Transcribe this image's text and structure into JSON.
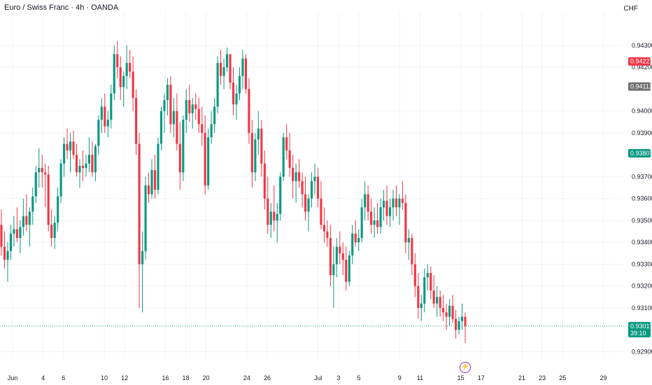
{
  "header": {
    "title": "Euro / Swiss Franc · 4h · OANDA",
    "currency": "CHF"
  },
  "colors": {
    "up": "#089981",
    "down": "#f23645",
    "grid": "#f0f3fa",
    "current_tag": "#089981",
    "prev_tag": "#707070",
    "high_tag": "#f23645",
    "green_tag": "#089981",
    "event": "#9c27b0"
  },
  "y_ticks": [
    "0.94300",
    "0.94200",
    "0.94000",
    "0.93900",
    "0.93700",
    "0.93600",
    "0.93500",
    "0.93400",
    "0.93300",
    "0.93200",
    "0.93100",
    "0.92900"
  ],
  "y_tick_values": [
    0.943,
    0.942,
    0.94,
    0.939,
    0.937,
    0.936,
    0.935,
    0.934,
    0.933,
    0.932,
    0.931,
    0.929
  ],
  "x_ticks": [
    {
      "label": "Jun",
      "day": 0
    },
    {
      "label": "4",
      "day": 3
    },
    {
      "label": "6",
      "day": 5
    },
    {
      "label": "10",
      "day": 9
    },
    {
      "label": "12",
      "day": 11
    },
    {
      "label": "16",
      "day": 15
    },
    {
      "label": "18",
      "day": 17
    },
    {
      "label": "20",
      "day": 19
    },
    {
      "label": "24",
      "day": 23
    },
    {
      "label": "26",
      "day": 25
    },
    {
      "label": "Jul",
      "day": 30
    },
    {
      "label": "3",
      "day": 32
    },
    {
      "label": "5",
      "day": 34
    },
    {
      "label": "9",
      "day": 38
    },
    {
      "label": "11",
      "day": 40
    },
    {
      "label": "15",
      "day": 44
    },
    {
      "label": "17",
      "day": 46
    },
    {
      "label": "21",
      "day": 50
    },
    {
      "label": "23",
      "day": 52
    },
    {
      "label": "25",
      "day": 54
    },
    {
      "label": "29",
      "day": 58
    }
  ],
  "price_tags": [
    {
      "label": "0.94227",
      "value": 0.94227,
      "color": "high_tag"
    },
    {
      "label": "0.94112",
      "value": 0.94112,
      "color": "prev_tag"
    },
    {
      "label": "0.93807",
      "value": 0.93807,
      "color": "green_tag"
    },
    {
      "label": "0.93017",
      "value": 0.93017,
      "color": "current_tag",
      "countdown": "39:10"
    }
  ],
  "current_price": 0.93017,
  "event_marker": "⚡",
  "chart_data": {
    "type": "candlestick",
    "title": "Euro / Swiss Franc · 4h · OANDA",
    "xlabel": "",
    "ylabel": "",
    "ylim": [
      0.9286,
      0.9445
    ],
    "xlim_days": [
      0,
      58
    ],
    "grid": true,
    "candles": [
      [
        0.9348,
        0.9355,
        0.9334,
        0.9338
      ],
      [
        0.9338,
        0.9345,
        0.9328,
        0.9332
      ],
      [
        0.9332,
        0.934,
        0.9322,
        0.9336
      ],
      [
        0.9336,
        0.9348,
        0.9332,
        0.9344
      ],
      [
        0.9344,
        0.9352,
        0.9338,
        0.9346
      ],
      [
        0.9346,
        0.9356,
        0.934,
        0.9342
      ],
      [
        0.9342,
        0.935,
        0.9335,
        0.9347
      ],
      [
        0.9347,
        0.936,
        0.9343,
        0.9352
      ],
      [
        0.9352,
        0.9362,
        0.9345,
        0.9348
      ],
      [
        0.9348,
        0.9356,
        0.9338,
        0.9354
      ],
      [
        0.9354,
        0.9365,
        0.9348,
        0.9361
      ],
      [
        0.9361,
        0.9375,
        0.9358,
        0.9372
      ],
      [
        0.9372,
        0.9383,
        0.9365,
        0.9374
      ],
      [
        0.9374,
        0.938,
        0.9365,
        0.9372
      ],
      [
        0.9372,
        0.9376,
        0.9356,
        0.9371
      ],
      [
        0.9371,
        0.9375,
        0.9345,
        0.9348
      ],
      [
        0.9348,
        0.9355,
        0.9338,
        0.9342
      ],
      [
        0.9342,
        0.9352,
        0.9337,
        0.9349
      ],
      [
        0.9349,
        0.9365,
        0.9345,
        0.9361
      ],
      [
        0.9361,
        0.9378,
        0.9358,
        0.9376
      ],
      [
        0.9376,
        0.9388,
        0.937,
        0.9385
      ],
      [
        0.9385,
        0.9392,
        0.9378,
        0.9382
      ],
      [
        0.9382,
        0.939,
        0.9372,
        0.9386
      ],
      [
        0.9386,
        0.9391,
        0.9378,
        0.938
      ],
      [
        0.938,
        0.9385,
        0.937,
        0.9372
      ],
      [
        0.9372,
        0.9378,
        0.9365,
        0.9375
      ],
      [
        0.9375,
        0.9382,
        0.9368,
        0.9374
      ],
      [
        0.9374,
        0.938,
        0.937,
        0.9376
      ],
      [
        0.9376,
        0.9388,
        0.9372,
        0.938
      ],
      [
        0.938,
        0.9386,
        0.937,
        0.9372
      ],
      [
        0.9372,
        0.9385,
        0.9368,
        0.9384
      ],
      [
        0.9384,
        0.9398,
        0.938,
        0.9396
      ],
      [
        0.9396,
        0.9406,
        0.939,
        0.9402
      ],
      [
        0.9402,
        0.9408,
        0.939,
        0.9393
      ],
      [
        0.9393,
        0.94,
        0.9388,
        0.9396
      ],
      [
        0.9396,
        0.9412,
        0.9392,
        0.9408
      ],
      [
        0.9408,
        0.943,
        0.9405,
        0.9426
      ],
      [
        0.9426,
        0.9432,
        0.9415,
        0.942
      ],
      [
        0.942,
        0.9425,
        0.9405,
        0.9411
      ],
      [
        0.9411,
        0.9418,
        0.9402,
        0.9416
      ],
      [
        0.9416,
        0.943,
        0.941,
        0.9422
      ],
      [
        0.9422,
        0.9428,
        0.9415,
        0.9418
      ],
      [
        0.9418,
        0.9425,
        0.94,
        0.9406
      ],
      [
        0.9406,
        0.941,
        0.938,
        0.9385
      ],
      [
        0.9385,
        0.939,
        0.931,
        0.933
      ],
      [
        0.933,
        0.9345,
        0.9308,
        0.9336
      ],
      [
        0.9336,
        0.937,
        0.9332,
        0.9366
      ],
      [
        0.9366,
        0.9372,
        0.9358,
        0.9362
      ],
      [
        0.9362,
        0.9378,
        0.936,
        0.9373
      ],
      [
        0.9373,
        0.938,
        0.936,
        0.9364
      ],
      [
        0.9364,
        0.9388,
        0.9362,
        0.9385
      ],
      [
        0.9385,
        0.9402,
        0.9382,
        0.94
      ],
      [
        0.94,
        0.9408,
        0.939,
        0.9405
      ],
      [
        0.9405,
        0.9415,
        0.9398,
        0.9412
      ],
      [
        0.9412,
        0.9416,
        0.939,
        0.9394
      ],
      [
        0.9394,
        0.9406,
        0.9388,
        0.94
      ],
      [
        0.94,
        0.9408,
        0.9382,
        0.9385
      ],
      [
        0.9385,
        0.9395,
        0.9364,
        0.9372
      ],
      [
        0.9372,
        0.9398,
        0.9368,
        0.9396
      ],
      [
        0.9396,
        0.941,
        0.939,
        0.9405
      ],
      [
        0.9405,
        0.9412,
        0.9395,
        0.9399
      ],
      [
        0.9399,
        0.9406,
        0.9392,
        0.9403
      ],
      [
        0.9403,
        0.9408,
        0.9396,
        0.9401
      ],
      [
        0.9401,
        0.9406,
        0.939,
        0.9394
      ],
      [
        0.9394,
        0.9402,
        0.9384,
        0.939
      ],
      [
        0.939,
        0.9398,
        0.9362,
        0.9366
      ],
      [
        0.9366,
        0.9392,
        0.9364,
        0.9388
      ],
      [
        0.9388,
        0.94,
        0.9385,
        0.9394
      ],
      [
        0.9394,
        0.9406,
        0.939,
        0.9402
      ],
      [
        0.9402,
        0.9425,
        0.9399,
        0.9422
      ],
      [
        0.9422,
        0.9428,
        0.9412,
        0.9416
      ],
      [
        0.9416,
        0.9424,
        0.941,
        0.942
      ],
      [
        0.942,
        0.9429,
        0.9418,
        0.9426
      ],
      [
        0.9426,
        0.9425,
        0.941,
        0.9413
      ],
      [
        0.9413,
        0.942,
        0.9398,
        0.9403
      ],
      [
        0.9403,
        0.9412,
        0.9396,
        0.9408
      ],
      [
        0.9408,
        0.942,
        0.9405,
        0.9416
      ],
      [
        0.9416,
        0.9428,
        0.941,
        0.9424
      ],
      [
        0.9424,
        0.9426,
        0.9408,
        0.941
      ],
      [
        0.941,
        0.9415,
        0.9385,
        0.939
      ],
      [
        0.939,
        0.9396,
        0.9365,
        0.9372
      ],
      [
        0.9372,
        0.939,
        0.9368,
        0.9387
      ],
      [
        0.9387,
        0.94,
        0.938,
        0.9392
      ],
      [
        0.9392,
        0.9396,
        0.937,
        0.9376
      ],
      [
        0.9376,
        0.9382,
        0.9355,
        0.936
      ],
      [
        0.936,
        0.937,
        0.9344,
        0.9348
      ],
      [
        0.9348,
        0.9358,
        0.9342,
        0.9354
      ],
      [
        0.9354,
        0.9366,
        0.9345,
        0.935
      ],
      [
        0.935,
        0.9358,
        0.934,
        0.9353
      ],
      [
        0.9353,
        0.9372,
        0.935,
        0.937
      ],
      [
        0.937,
        0.939,
        0.9368,
        0.9388
      ],
      [
        0.9388,
        0.9394,
        0.9378,
        0.9382
      ],
      [
        0.9382,
        0.939,
        0.937,
        0.9374
      ],
      [
        0.9374,
        0.938,
        0.936,
        0.9368
      ],
      [
        0.9368,
        0.9376,
        0.9358,
        0.9372
      ],
      [
        0.9372,
        0.9378,
        0.9365,
        0.9368
      ],
      [
        0.9368,
        0.9372,
        0.9356,
        0.9362
      ],
      [
        0.9362,
        0.937,
        0.935,
        0.9354
      ],
      [
        0.9354,
        0.9362,
        0.9345,
        0.936
      ],
      [
        0.936,
        0.9372,
        0.9356,
        0.9368
      ],
      [
        0.9368,
        0.9376,
        0.9362,
        0.937
      ],
      [
        0.937,
        0.9374,
        0.9356,
        0.936
      ],
      [
        0.936,
        0.9368,
        0.9346,
        0.9348
      ],
      [
        0.9348,
        0.9356,
        0.934,
        0.9345
      ],
      [
        0.9345,
        0.935,
        0.9338,
        0.9342
      ],
      [
        0.9342,
        0.9348,
        0.932,
        0.9325
      ],
      [
        0.9325,
        0.9338,
        0.931,
        0.933
      ],
      [
        0.933,
        0.9342,
        0.9324,
        0.9338
      ],
      [
        0.9338,
        0.9345,
        0.933,
        0.9335
      ],
      [
        0.9335,
        0.934,
        0.9325,
        0.9332
      ],
      [
        0.9332,
        0.9338,
        0.9318,
        0.9322
      ],
      [
        0.9322,
        0.9336,
        0.932,
        0.9334
      ],
      [
        0.9334,
        0.9348,
        0.933,
        0.9344
      ],
      [
        0.9344,
        0.935,
        0.9338,
        0.934
      ],
      [
        0.934,
        0.9346,
        0.9336,
        0.9342
      ],
      [
        0.9342,
        0.936,
        0.934,
        0.9356
      ],
      [
        0.9356,
        0.9368,
        0.935,
        0.9362
      ],
      [
        0.9362,
        0.9366,
        0.935,
        0.9354
      ],
      [
        0.9354,
        0.936,
        0.9344,
        0.9348
      ],
      [
        0.9348,
        0.9356,
        0.9342,
        0.935
      ],
      [
        0.935,
        0.9358,
        0.9344,
        0.9347
      ],
      [
        0.9347,
        0.936,
        0.9344,
        0.9356
      ],
      [
        0.9356,
        0.9364,
        0.935,
        0.9359
      ],
      [
        0.9359,
        0.9366,
        0.9348,
        0.9352
      ],
      [
        0.9352,
        0.936,
        0.9347,
        0.9356
      ],
      [
        0.9356,
        0.9364,
        0.935,
        0.936
      ],
      [
        0.936,
        0.9366,
        0.9352,
        0.9356
      ],
      [
        0.9356,
        0.9362,
        0.9348,
        0.936
      ],
      [
        0.936,
        0.9368,
        0.9355,
        0.9358
      ],
      [
        0.9358,
        0.9362,
        0.9335,
        0.934
      ],
      [
        0.934,
        0.9346,
        0.9332,
        0.9342
      ],
      [
        0.9342,
        0.9344,
        0.9325,
        0.933
      ],
      [
        0.933,
        0.9335,
        0.9315,
        0.932
      ],
      [
        0.932,
        0.9326,
        0.9305,
        0.931
      ],
      [
        0.931,
        0.9316,
        0.9304,
        0.9312
      ],
      [
        0.9312,
        0.9328,
        0.9308,
        0.9324
      ],
      [
        0.9324,
        0.933,
        0.9318,
        0.9326
      ],
      [
        0.9326,
        0.9329,
        0.9314,
        0.9318
      ],
      [
        0.9318,
        0.9325,
        0.931,
        0.9312
      ],
      [
        0.9312,
        0.932,
        0.9306,
        0.9315
      ],
      [
        0.9315,
        0.9318,
        0.9306,
        0.931
      ],
      [
        0.931,
        0.9316,
        0.9304,
        0.9308
      ],
      [
        0.9308,
        0.9312,
        0.93,
        0.9306
      ],
      [
        0.9306,
        0.9314,
        0.9302,
        0.9311
      ],
      [
        0.9311,
        0.9316,
        0.9303,
        0.9305
      ],
      [
        0.9305,
        0.9309,
        0.9296,
        0.93
      ],
      [
        0.93,
        0.9306,
        0.9298,
        0.9304
      ],
      [
        0.9304,
        0.9312,
        0.93,
        0.9306
      ],
      [
        0.9306,
        0.9308,
        0.9294,
        0.93017
      ]
    ]
  }
}
